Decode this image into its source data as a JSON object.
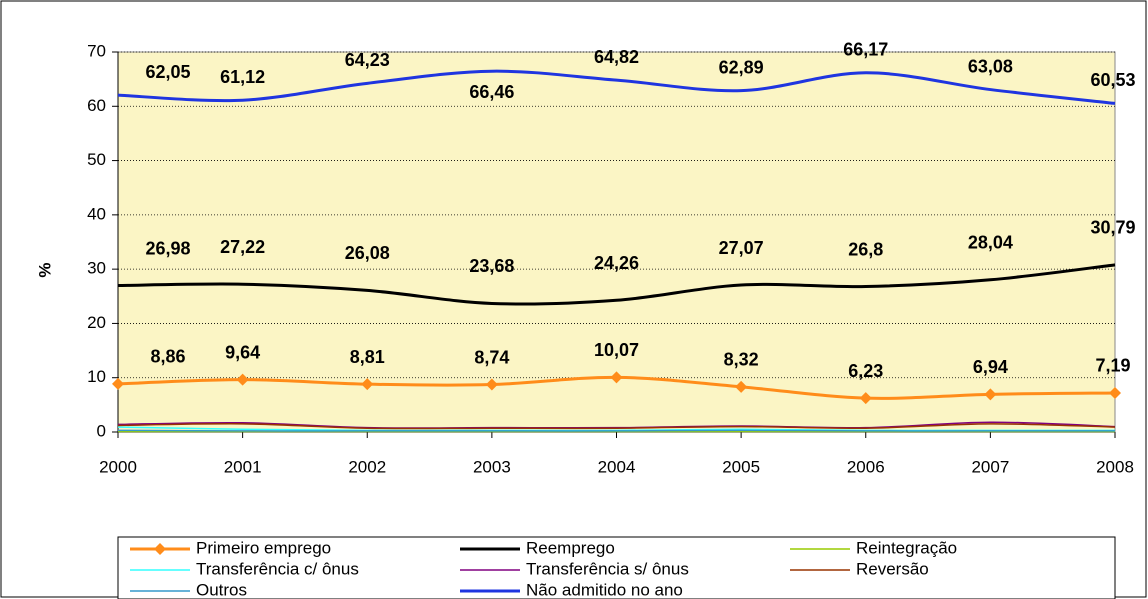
{
  "chart_data": {
    "type": "line",
    "y_label": "%",
    "categories": [
      "2000",
      "2001",
      "2002",
      "2003",
      "2004",
      "2005",
      "2006",
      "2007",
      "2008"
    ],
    "ylim": [
      0,
      70
    ],
    "yticks": [
      0,
      10,
      20,
      30,
      40,
      50,
      60,
      70
    ],
    "grid": true,
    "series": [
      {
        "name": "Primeiro emprego",
        "color": "#ff8c1a",
        "marker": "diamond",
        "values": [
          8.86,
          9.64,
          8.81,
          8.74,
          10.07,
          8.32,
          6.23,
          6.94,
          7.19
        ],
        "value_labels": [
          "8,86",
          "9,64",
          "8,81",
          "8,74",
          "10,07",
          "8,32",
          "6,23",
          "6,94",
          "7,19"
        ]
      },
      {
        "name": "Reemprego",
        "color": "#000000",
        "values": [
          26.98,
          27.22,
          26.08,
          23.68,
          24.26,
          27.07,
          26.8,
          28.04,
          30.79
        ],
        "value_labels": [
          "26,98",
          "27,22",
          "26,08",
          "23,68",
          "24,26",
          "27,07",
          "26,8",
          "28,04",
          "30,79"
        ]
      },
      {
        "name": "Reintegração",
        "color": "#99cc00",
        "values": [
          0.1,
          0.1,
          0.1,
          0.1,
          0.1,
          0.1,
          0.1,
          0.1,
          0.1
        ]
      },
      {
        "name": "Transferência c/ ônus",
        "color": "#33ffff",
        "values": [
          0.9,
          0.5,
          0.3,
          0.3,
          0.3,
          0.5,
          0.3,
          0.3,
          0.3
        ]
      },
      {
        "name": "Transferência s/ ônus",
        "color": "#800080",
        "values": [
          1.4,
          1.7,
          0.8,
          0.8,
          0.8,
          1.1,
          0.8,
          1.8,
          1.0
        ]
      },
      {
        "name": "Reversão",
        "color": "#993300",
        "values": [
          1.2,
          1.5,
          0.7,
          0.7,
          0.7,
          1.0,
          0.7,
          1.5,
          0.9
        ]
      },
      {
        "name": "Outros",
        "color": "#3399cc",
        "values": [
          0.3,
          0.2,
          0.2,
          0.2,
          0.2,
          0.3,
          0.2,
          0.2,
          0.2
        ]
      },
      {
        "name": "Não admitido no ano",
        "color": "#1f35e0",
        "values": [
          62.05,
          61.12,
          64.23,
          66.46,
          64.82,
          62.89,
          66.17,
          63.08,
          60.53
        ],
        "value_labels": [
          "62,05",
          "61,12",
          "64,23",
          "66,46",
          "64,82",
          "62,89",
          "66,17",
          "63,08",
          "60,53"
        ]
      }
    ]
  }
}
